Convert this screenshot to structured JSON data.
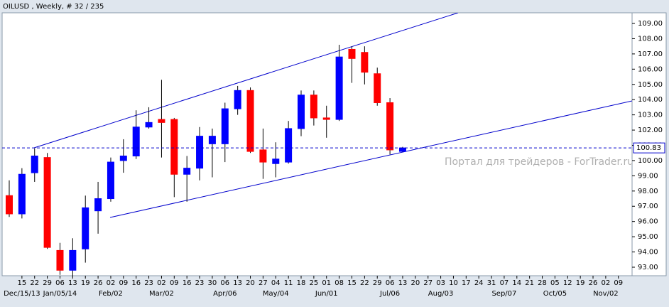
{
  "chart_data": {
    "type": "candlestick",
    "title": "OILUSD , Weekly, # 32 / 235",
    "watermark": "Портал для трейдеров - ForTrader.ru",
    "categories": [
      null,
      "15",
      "22",
      "29",
      "06",
      "13",
      "19",
      "26",
      "02",
      "09",
      "16",
      "23",
      "02",
      "09",
      "16",
      "23",
      "30",
      "06",
      "13",
      "20",
      "27",
      "04",
      "11",
      "18",
      "25",
      "01",
      "08",
      "15",
      "22",
      "29",
      "06",
      "13",
      "20",
      "27",
      "03",
      "10",
      "17",
      "24",
      "31",
      "07",
      "14",
      "21",
      "28",
      "05",
      "12",
      "19",
      "26",
      "02",
      "09"
    ],
    "major_labels": [
      null,
      "Dec/15/13",
      null,
      null,
      "Jan/05/14",
      null,
      null,
      null,
      "Feb/02",
      null,
      null,
      null,
      "Mar/02",
      null,
      null,
      null,
      null,
      "Apr/06",
      null,
      null,
      null,
      "May/04",
      null,
      null,
      null,
      "Jun/01",
      null,
      null,
      null,
      null,
      "Jul/06",
      null,
      null,
      null,
      "Aug/03",
      null,
      null,
      null,
      null,
      "Sep/07",
      null,
      null,
      null,
      "Oct/05",
      null,
      null,
      null,
      "Nov/02",
      null
    ],
    "open": [
      97.7,
      96.5,
      99.2,
      100.2,
      94.1,
      92.8,
      94.2,
      96.7,
      97.5,
      100.0,
      100.3,
      102.2,
      102.7,
      102.7,
      99.1,
      99.5,
      101.1,
      101.1,
      103.4,
      104.6,
      100.7,
      99.8,
      99.9,
      102.1,
      104.3,
      102.8,
      102.7,
      107.3,
      107.1,
      105.7,
      103.8,
      100.6,
      null,
      null,
      null,
      null,
      null,
      null,
      null,
      null,
      null,
      null,
      null,
      null,
      null,
      null,
      null,
      null,
      null
    ],
    "high": [
      98.7,
      99.5,
      100.8,
      100.5,
      94.6,
      94.9,
      97.7,
      98.6,
      100.2,
      101.4,
      103.3,
      103.5,
      105.3,
      102.8,
      100.3,
      102.2,
      102.1,
      103.8,
      104.9,
      104.8,
      102.1,
      101.2,
      102.6,
      104.6,
      104.6,
      103.6,
      107.6,
      107.5,
      107.5,
      106.1,
      104.1,
      100.9,
      null,
      null,
      null,
      null,
      null,
      null,
      null,
      null,
      null,
      null,
      null,
      null,
      null,
      null,
      null,
      null,
      null
    ],
    "low": [
      96.3,
      96.2,
      98.6,
      94.2,
      92.5,
      92.4,
      93.3,
      95.2,
      97.3,
      99.2,
      100.1,
      102.1,
      100.2,
      97.6,
      97.3,
      98.7,
      98.9,
      99.9,
      103.0,
      100.5,
      98.8,
      98.9,
      99.8,
      101.6,
      102.3,
      101.5,
      102.6,
      105.1,
      105.0,
      103.6,
      100.4,
      100.55,
      null,
      null,
      null,
      null,
      null,
      null,
      null,
      null,
      null,
      null,
      null,
      null,
      null,
      null,
      null,
      null,
      null
    ],
    "close": [
      96.5,
      99.1,
      100.3,
      94.3,
      92.8,
      94.1,
      96.9,
      97.5,
      99.9,
      100.3,
      102.2,
      102.5,
      102.5,
      99.1,
      99.5,
      101.6,
      101.6,
      103.4,
      104.6,
      100.6,
      99.9,
      100.1,
      102.1,
      104.3,
      102.8,
      102.7,
      106.8,
      106.7,
      105.8,
      103.8,
      100.7,
      100.83,
      null,
      null,
      null,
      null,
      null,
      null,
      null,
      null,
      null,
      null,
      null,
      null,
      null,
      null,
      null,
      null,
      null
    ],
    "up_color": "#0000ff",
    "down_color": "#ff0000",
    "last_price": {
      "value": 100.83,
      "label": "100.83"
    },
    "ylim": [
      92.44,
      109.7
    ],
    "yticks": [
      {
        "value": 93,
        "label": "93.00"
      },
      {
        "value": 94,
        "label": "94.00"
      },
      {
        "value": 95,
        "label": "95.00"
      },
      {
        "value": 96,
        "label": "96.00"
      },
      {
        "value": 97,
        "label": "97.00"
      },
      {
        "value": 98,
        "label": "98.00"
      },
      {
        "value": 99,
        "label": "99.00"
      },
      {
        "value": 100,
        "label": "100.00"
      },
      {
        "value": 101,
        "label": "101.00"
      },
      {
        "value": 102,
        "label": "102.00"
      },
      {
        "value": 103,
        "label": "103.00"
      },
      {
        "value": 104,
        "label": "104.00"
      },
      {
        "value": 105,
        "label": "105.00"
      },
      {
        "value": 106,
        "label": "106.00"
      },
      {
        "value": 107,
        "label": "107.00"
      },
      {
        "value": 108,
        "label": "108.00"
      },
      {
        "value": 109,
        "label": "109.00"
      }
    ]
  }
}
